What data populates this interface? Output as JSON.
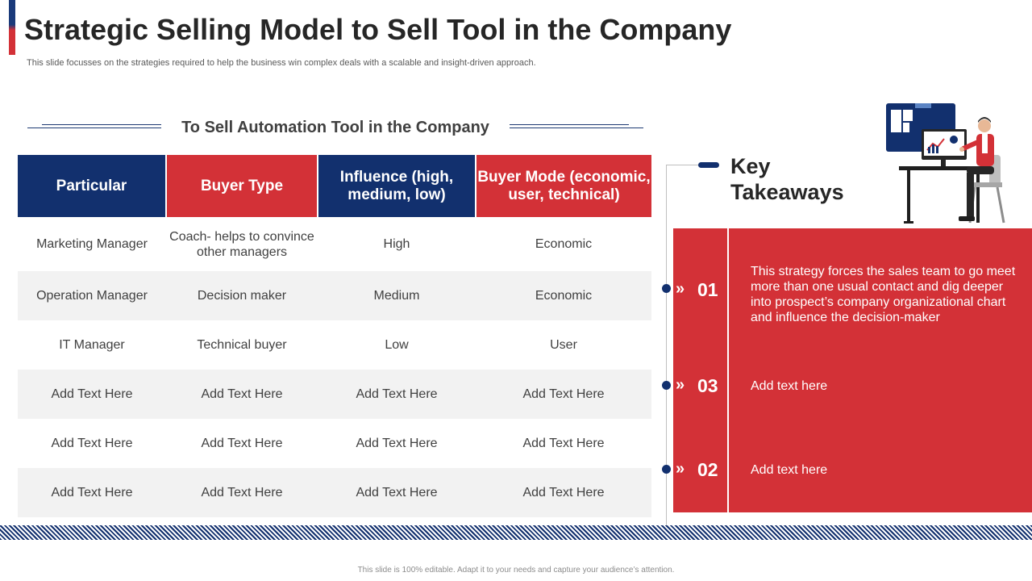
{
  "header": {
    "title": "Strategic Selling Model to Sell Tool in the Company",
    "subtitle": "This slide focusses on the strategies required to help the business win complex deals with a scalable and insight-driven approach."
  },
  "table": {
    "heading": "To Sell Automation Tool in the Company",
    "columns": [
      {
        "label": "Particular",
        "color": "#12306e"
      },
      {
        "label": "Buyer Type",
        "color": "#d33137"
      },
      {
        "label": "Influence (high, medium, low)",
        "color": "#12306e"
      },
      {
        "label": "Buyer Mode (economic, user, technical)",
        "color": "#d33137"
      }
    ],
    "rows": [
      [
        "Marketing Manager",
        "Coach- helps to convince other managers",
        "High",
        "Economic"
      ],
      [
        "Operation Manager",
        "Decision maker",
        "Medium",
        "Economic"
      ],
      [
        "IT Manager",
        "Technical buyer",
        "Low",
        "User"
      ],
      [
        "Add Text Here",
        "Add Text Here",
        "Add Text Here",
        "Add Text Here"
      ],
      [
        "Add Text Here",
        "Add Text Here",
        "Add Text Here",
        "Add Text Here"
      ],
      [
        "Add Text Here",
        "Add Text Here",
        "Add Text Here",
        "Add Text Here"
      ]
    ]
  },
  "key_takeaways": {
    "title": "Key Takeaways",
    "items": [
      {
        "number": "01",
        "text": "This strategy forces the sales team to go meet more than one usual contact and dig deeper into prospect’s company organizational chart and influence the decision-maker"
      },
      {
        "number": "03",
        "text": "Add text here"
      },
      {
        "number": "02",
        "text": "Add text here"
      }
    ],
    "chevron_icon": "double-chevron-right-icon",
    "accent": "#d33137",
    "marker_color": "#12306e"
  },
  "illustration": {
    "icon": "businessman-at-computer-icon"
  },
  "footer": {
    "text": "This slide is 100% editable. Adapt it to your needs and capture your audience’s attention."
  }
}
